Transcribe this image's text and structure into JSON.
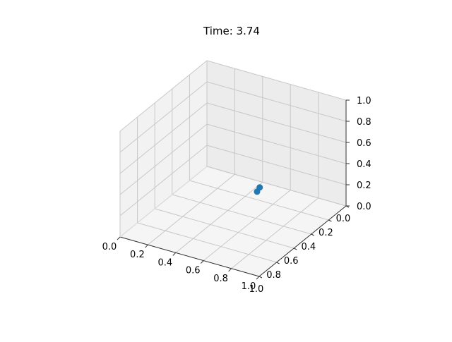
{
  "chart_data": {
    "type": "scatter",
    "projection": "3d",
    "title": "Time: 3.74",
    "xlabel": "",
    "ylabel": "",
    "zlabel": "",
    "xlim": [
      0,
      1
    ],
    "ylim": [
      0,
      1
    ],
    "zlim": [
      0,
      1
    ],
    "grid": true,
    "x_ticks": [
      "0.0",
      "0.2",
      "0.4",
      "0.6",
      "0.8",
      "1.0"
    ],
    "y_ticks": [
      "0.0",
      "0.2",
      "0.4",
      "0.6",
      "0.8",
      "1.0"
    ],
    "z_ticks": [
      "0.0",
      "0.2",
      "0.4",
      "0.6",
      "0.8",
      "1.0"
    ],
    "marker_color": "#1f77b4",
    "points": [
      {
        "x": 0.53,
        "y": 0.71,
        "z": 0.42
      },
      {
        "x": 0.56,
        "y": 0.71,
        "z": 0.4
      }
    ]
  }
}
